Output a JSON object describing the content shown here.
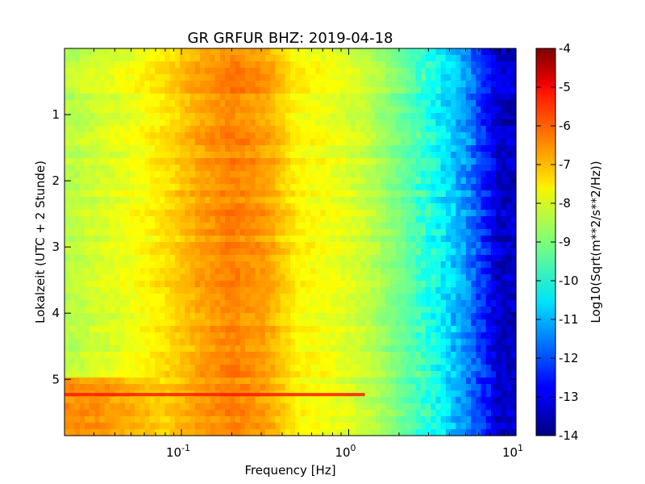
{
  "chart_data": {
    "type": "heatmap",
    "title": "GR GRFUR BHZ: 2019-04-18",
    "xlabel": "Frequency [Hz]",
    "ylabel": "Lokalzeit (UTC + 2 Stunde)",
    "colorbar_label": "Log10(Sqrt(m**2/s**2/Hz))",
    "x_scale": "log",
    "xlim": [
      0.02,
      10
    ],
    "ylim": [
      5.85,
      0.0
    ],
    "y_inverted": true,
    "x_ticks": [
      {
        "value": 0.1,
        "base": "10",
        "exp": "-1"
      },
      {
        "value": 1,
        "base": "10",
        "exp": "0"
      },
      {
        "value": 10,
        "base": "10",
        "exp": "1"
      }
    ],
    "y_ticks": [
      "1",
      "2",
      "3",
      "4",
      "5"
    ],
    "colorbar_ticks": [
      "-4",
      "-5",
      "-6",
      "-7",
      "-8",
      "-9",
      "-10",
      "-11",
      "-12",
      "-13",
      "-14"
    ],
    "clim": [
      -14,
      -4
    ],
    "colormap": "jet",
    "grid": false,
    "log10_frequencies": [
      -1.7,
      -1.5,
      -1.3,
      -1.1,
      -0.9,
      -0.7,
      -0.5,
      -0.3,
      -0.1,
      0.1,
      0.3,
      0.5,
      0.7,
      0.9
    ],
    "psd_profile": [
      -8.5,
      -8.2,
      -7.9,
      -7.5,
      -6.9,
      -6.5,
      -6.8,
      -7.7,
      -7.9,
      -8.3,
      -9.1,
      -10.0,
      -11.3,
      -13.3
    ],
    "late_hours_profile": [
      -6.6,
      -6.7,
      -7.0,
      -7.3,
      -6.8,
      -6.5,
      -6.8,
      -7.7,
      -7.9,
      -8.3,
      -9.1,
      -10.0,
      -11.3,
      -13.3
    ],
    "late_hours_start": 5.0,
    "notable_band": {
      "time": 5.23,
      "freq_max": 1.25,
      "value": -5.5
    }
  }
}
